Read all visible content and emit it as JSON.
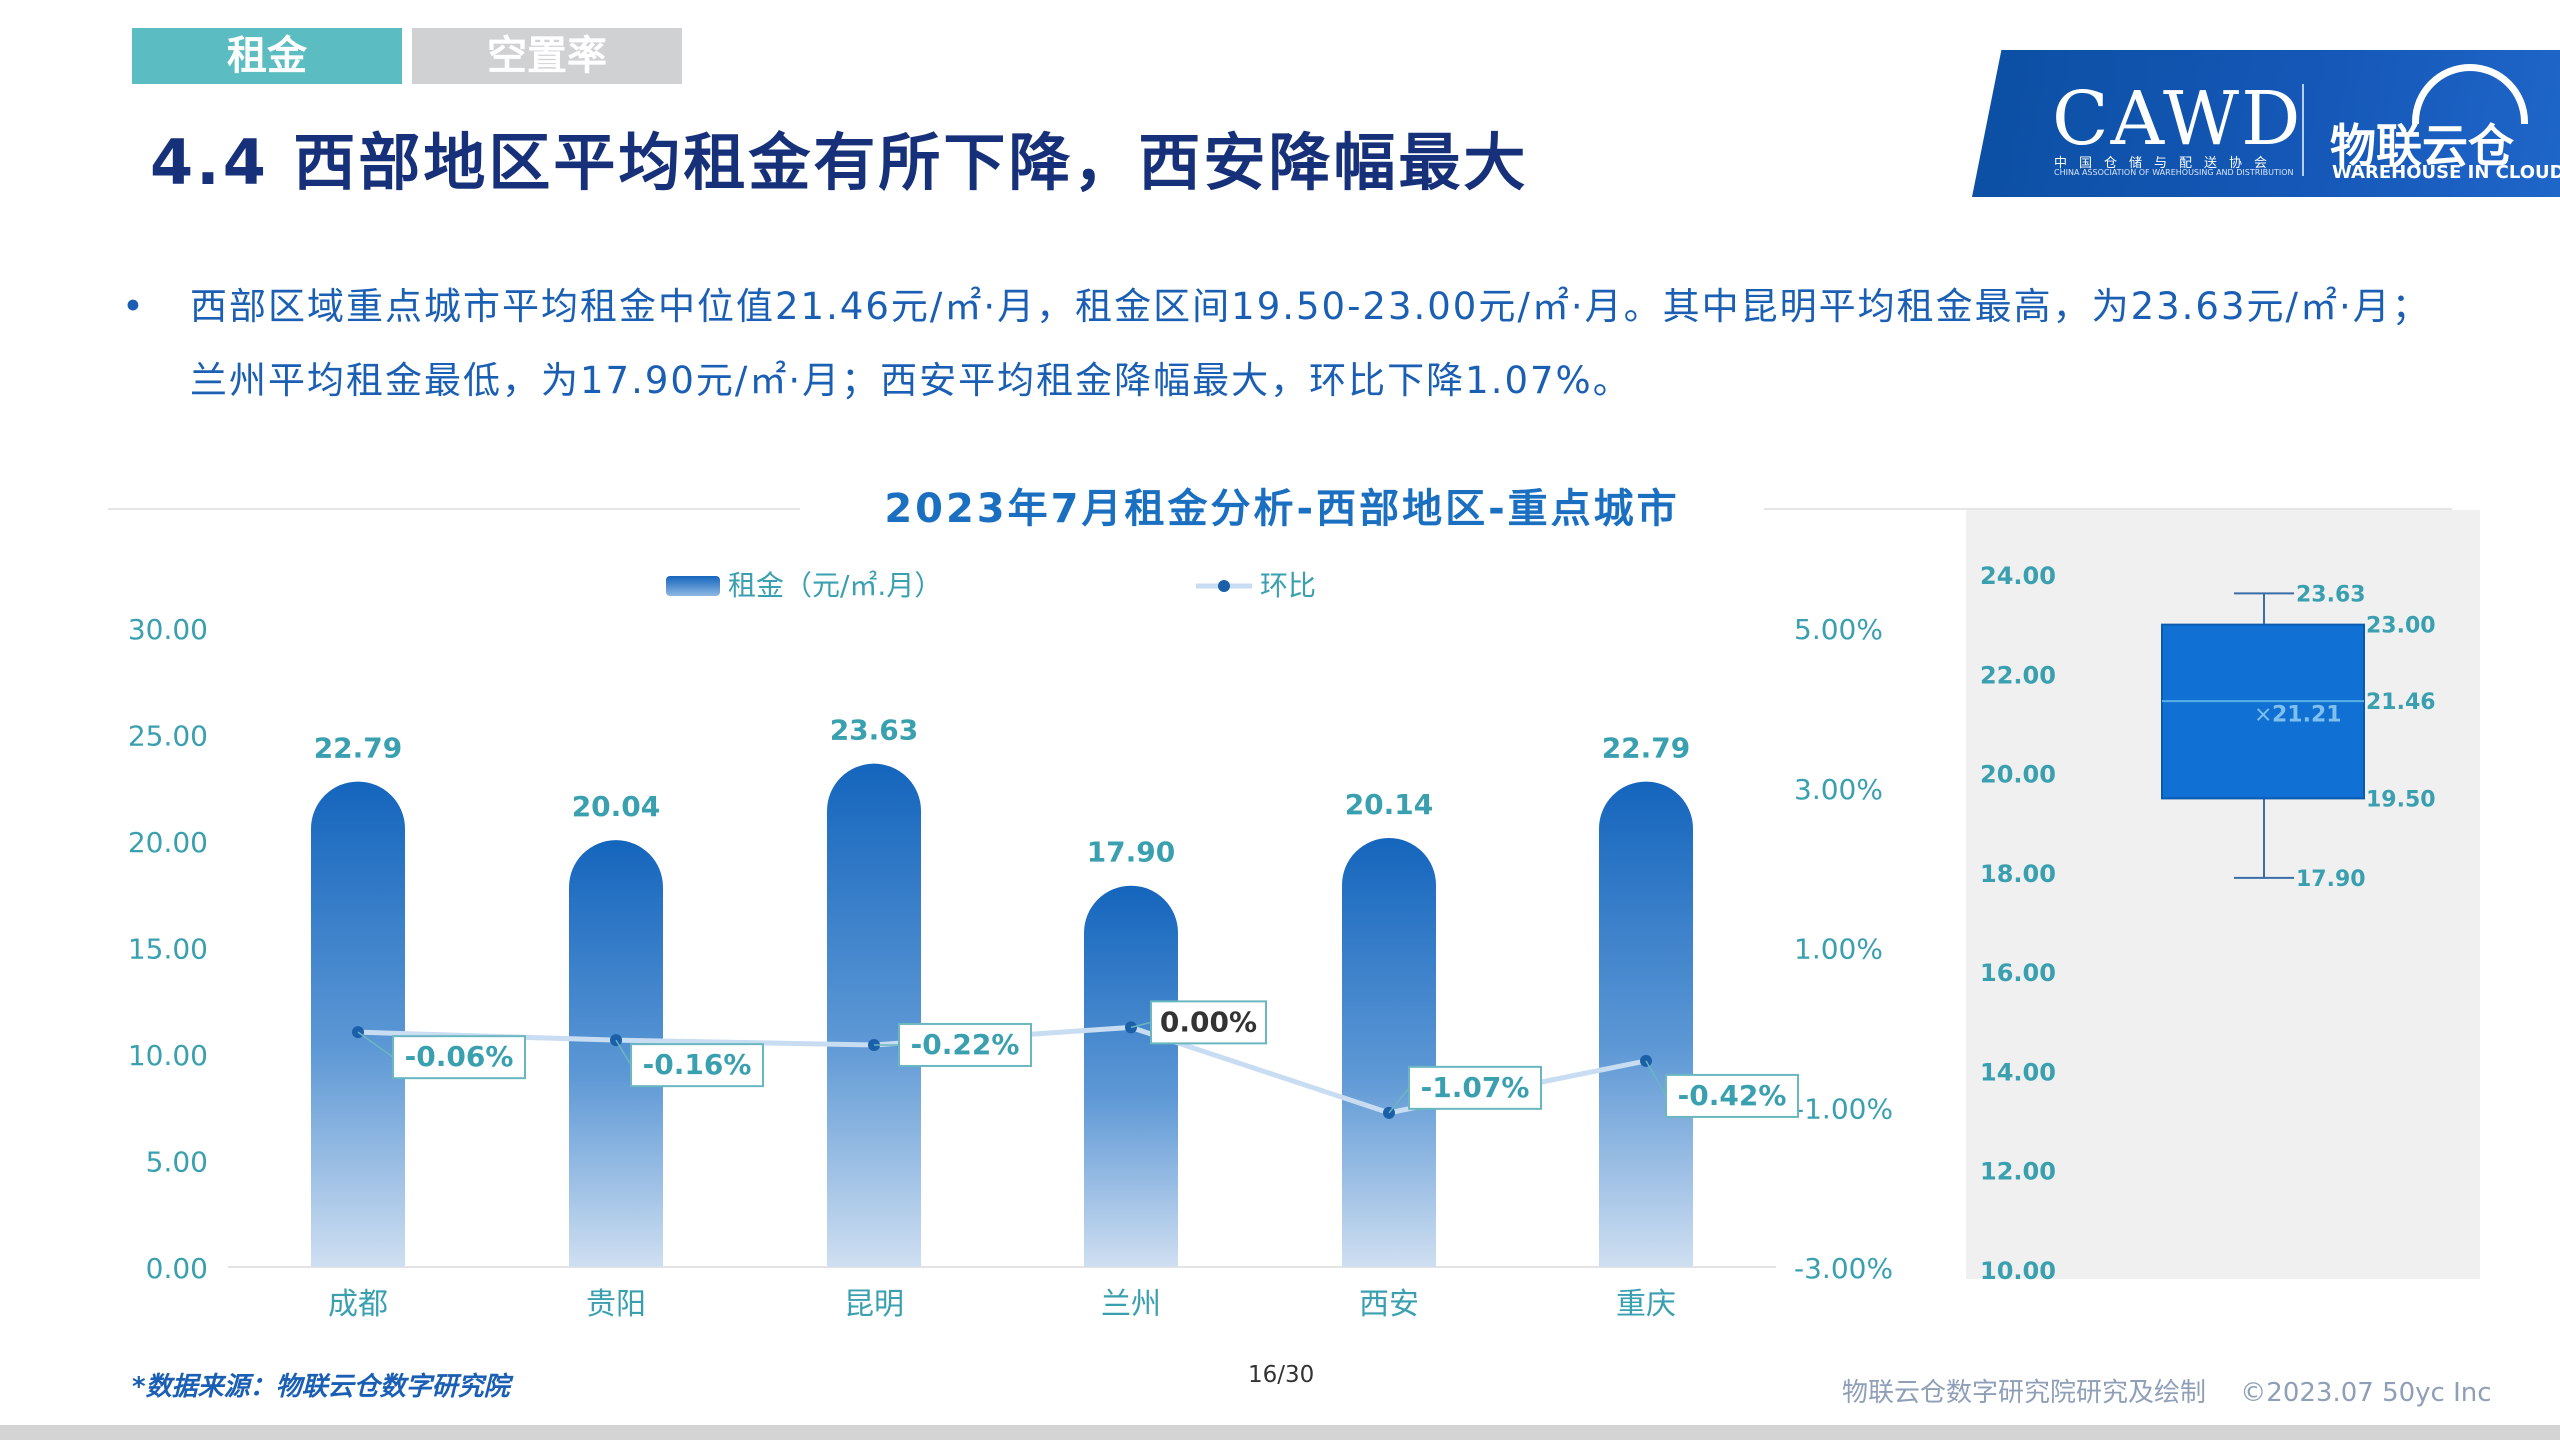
{
  "tabs": {
    "rent": "租金",
    "vacancy": "空置率"
  },
  "title": "4.4 西部地区平均租金有所下降，西安降幅最大",
  "logo": {
    "cawd": "CAWD",
    "cn": "中国仓储与配送协会",
    "en": "CHINA ASSOCIATION OF WAREHOUSING AND DISTRIBUTION",
    "wuliu": "物联云仓",
    "wic": "WAREHOUSE IN CLOUD"
  },
  "bullet": {
    "dot": "•",
    "line1": "西部区域重点城市平均租金中位值21.46元/㎡·月，租金区间19.50-23.00元/㎡·月。其中昆明平均租金最高，为23.63元/㎡·月；",
    "line2": "兰州平均租金最低，为17.90元/㎡·月；西安平均租金降幅最大，环比下降1.07%。"
  },
  "chart_data": [
    {
      "type": "bar",
      "title": "2023年7月租金分析-西部地区-重点城市",
      "categories": [
        "成都",
        "贵阳",
        "昆明",
        "兰州",
        "西安",
        "重庆"
      ],
      "series": [
        {
          "name": "租金（元/㎡.月）",
          "type": "bar",
          "axis": "left",
          "values": [
            22.79,
            20.04,
            23.63,
            17.9,
            20.14,
            22.79
          ],
          "labels": [
            "22.79",
            "20.04",
            "23.63",
            "17.90",
            "20.14",
            "22.79"
          ]
        },
        {
          "name": "环比",
          "type": "line",
          "axis": "right",
          "values": [
            -0.06,
            -0.16,
            -0.22,
            0.0,
            -1.07,
            -0.42
          ],
          "labels": [
            "-0.06%",
            "-0.16%",
            "-0.22%",
            "0.00%",
            "-1.07%",
            "-0.42%"
          ]
        }
      ],
      "left_axis": {
        "range": [
          0,
          30
        ],
        "ticks": [
          "0.00",
          "5.00",
          "10.00",
          "15.00",
          "20.00",
          "25.00",
          "30.00"
        ]
      },
      "right_axis": {
        "range": [
          -3,
          5
        ],
        "ticks": [
          "-3.00%",
          "-1.00%",
          "1.00%",
          "3.00%",
          "5.00%"
        ]
      },
      "legend_position": "top",
      "colors": {
        "bar": "#1a68c0",
        "line": "#c8dcf2",
        "label": "#3aa0b0",
        "title": "#1a6fc0"
      }
    },
    {
      "type": "box",
      "ylim": [
        10,
        24
      ],
      "ticks": [
        "10.00",
        "12.00",
        "14.00",
        "16.00",
        "18.00",
        "20.00",
        "22.00",
        "24.00"
      ],
      "min": 17.9,
      "q1": 19.5,
      "median": 21.46,
      "mean": 21.21,
      "q3": 23.0,
      "max": 23.63,
      "labels": {
        "max": "23.63",
        "q3": "23.00",
        "median": "21.46",
        "mean": "21.21",
        "q1": "19.50",
        "min": "17.90",
        "mean_marker": "×"
      },
      "colors": {
        "box": "#1170d4",
        "background": "#f0f0f0"
      }
    }
  ],
  "footer": {
    "source": "*数据来源：物联云仓数字研究院",
    "page": "16/30",
    "credit": "物联云仓数字研究院研究及绘制",
    "copyright": "©2023.07 50yc Inc"
  }
}
